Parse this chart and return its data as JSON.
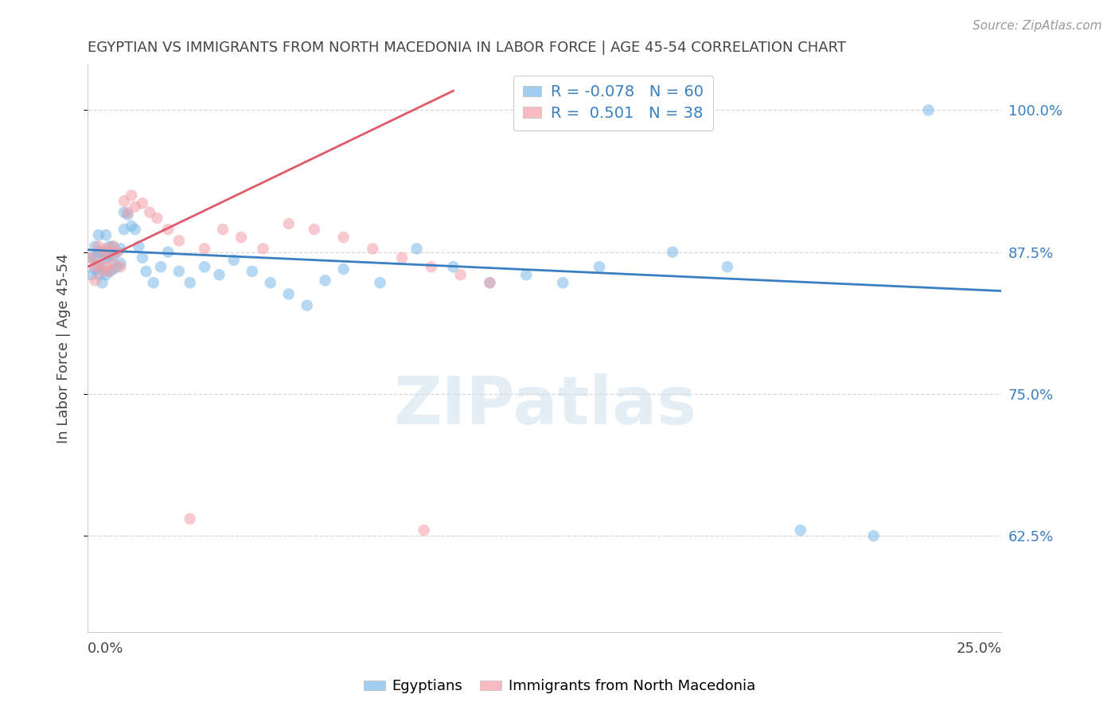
{
  "title": "EGYPTIAN VS IMMIGRANTS FROM NORTH MACEDONIA IN LABOR FORCE | AGE 45-54 CORRELATION CHART",
  "source": "Source: ZipAtlas.com",
  "ylabel": "In Labor Force | Age 45-54",
  "ytick_labels": [
    "100.0%",
    "87.5%",
    "75.0%",
    "62.5%"
  ],
  "ytick_values": [
    1.0,
    0.875,
    0.75,
    0.625
  ],
  "xlim": [
    0.0,
    0.25
  ],
  "ylim": [
    0.54,
    1.04
  ],
  "legend_line1": "R = -0.078   N = 60",
  "legend_line2": "R =  0.501   N = 38",
  "watermark": "ZIPatlas",
  "egyptians_color": "#7ab8e8",
  "macedonians_color": "#f4a0a8",
  "trend_egypt_color": "#3a7fc1",
  "trend_mac_color": "#e05a6a",
  "legend_text_color": "#3a7fc1",
  "right_axis_color": "#3a7fc1",
  "title_color": "#444444",
  "source_color": "#999999",
  "grid_color": "#d8d8d8",
  "spine_color": "#cccccc",
  "egyptians_x": [
    0.001,
    0.001,
    0.002,
    0.002,
    0.002,
    0.003,
    0.003,
    0.003,
    0.003,
    0.004,
    0.004,
    0.004,
    0.005,
    0.005,
    0.005,
    0.005,
    0.006,
    0.006,
    0.006,
    0.007,
    0.007,
    0.007,
    0.008,
    0.008,
    0.009,
    0.009,
    0.01,
    0.01,
    0.011,
    0.012,
    0.013,
    0.014,
    0.015,
    0.016,
    0.018,
    0.02,
    0.022,
    0.025,
    0.028,
    0.032,
    0.036,
    0.04,
    0.045,
    0.05,
    0.055,
    0.06,
    0.065,
    0.07,
    0.08,
    0.09,
    0.1,
    0.11,
    0.12,
    0.13,
    0.14,
    0.16,
    0.175,
    0.195,
    0.215,
    0.23
  ],
  "egyptians_y": [
    0.87,
    0.855,
    0.88,
    0.87,
    0.86,
    0.89,
    0.875,
    0.862,
    0.855,
    0.875,
    0.862,
    0.848,
    0.89,
    0.875,
    0.87,
    0.855,
    0.88,
    0.87,
    0.858,
    0.88,
    0.872,
    0.86,
    0.875,
    0.862,
    0.878,
    0.865,
    0.91,
    0.895,
    0.908,
    0.898,
    0.895,
    0.88,
    0.87,
    0.858,
    0.848,
    0.862,
    0.875,
    0.858,
    0.848,
    0.862,
    0.855,
    0.868,
    0.858,
    0.848,
    0.838,
    0.828,
    0.85,
    0.86,
    0.848,
    0.878,
    0.862,
    0.848,
    0.855,
    0.848,
    0.862,
    0.875,
    0.862,
    0.63,
    0.625,
    1.0
  ],
  "macedonians_x": [
    0.001,
    0.002,
    0.002,
    0.003,
    0.003,
    0.004,
    0.004,
    0.005,
    0.005,
    0.006,
    0.006,
    0.007,
    0.007,
    0.008,
    0.009,
    0.01,
    0.011,
    0.012,
    0.013,
    0.015,
    0.017,
    0.019,
    0.022,
    0.025,
    0.028,
    0.032,
    0.037,
    0.042,
    0.048,
    0.055,
    0.062,
    0.07,
    0.078,
    0.086,
    0.094,
    0.102,
    0.11,
    0.092
  ],
  "macedonians_y": [
    0.87,
    0.862,
    0.85,
    0.88,
    0.865,
    0.875,
    0.858,
    0.878,
    0.862,
    0.875,
    0.858,
    0.88,
    0.865,
    0.875,
    0.862,
    0.92,
    0.91,
    0.925,
    0.915,
    0.918,
    0.91,
    0.905,
    0.895,
    0.885,
    0.64,
    0.878,
    0.895,
    0.888,
    0.878,
    0.9,
    0.895,
    0.888,
    0.878,
    0.87,
    0.862,
    0.855,
    0.848,
    0.63
  ]
}
